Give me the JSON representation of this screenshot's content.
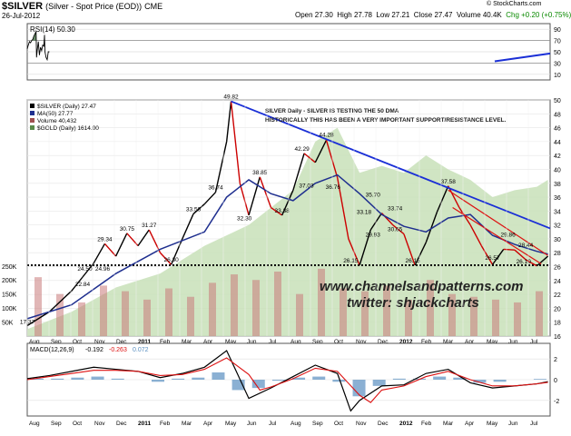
{
  "header": {
    "symbol": "$SILVER",
    "description": "(Silver - Spot Price (EOD))",
    "exchange": "CME",
    "date": "26-Jul-2012",
    "open": "Open 27.30",
    "high": "High 27.78",
    "low": "Low 27.21",
    "close": "Close 27.47",
    "volume": "Volume 40.4K",
    "change": "Chg +0.20 (+0.75%)",
    "credit": "© StockCharts.com"
  },
  "colors": {
    "price_up": "#000000",
    "price_down": "#cc0000",
    "ma50": "#1f2f8f",
    "gold_area": "#c8e0b9",
    "trendline": "#1a2fd6",
    "channel": "#dd1111",
    "rsi_fill": "#4f7a4f",
    "macd": "#000000",
    "signal": "#dd1111",
    "histogram": "#5a8fc0",
    "annotation_text": "#1a1a1a"
  },
  "chart_data": [
    {
      "type": "line",
      "title": "RSI(14) 50.30",
      "ylim": [
        0,
        100
      ],
      "ytick_labels": [
        "90",
        "70",
        "50",
        "30",
        "10"
      ],
      "ytick_values": [
        90,
        70,
        50,
        30,
        10
      ],
      "series": [
        {
          "name": "RSI(14) 50.30",
          "x": [
            0,
            0.05,
            0.1,
            0.15,
            0.2,
            0.25,
            0.3,
            0.35,
            0.4,
            0.42,
            0.45,
            0.5,
            0.55,
            0.6,
            0.65,
            0.7,
            0.75,
            0.78,
            0.8,
            0.85,
            0.9,
            0.95,
            1.0
          ],
          "values": [
            55,
            62,
            68,
            66,
            70,
            72,
            78,
            82,
            86,
            40,
            52,
            68,
            44,
            58,
            52,
            62,
            60,
            80,
            50,
            40,
            36,
            50,
            50
          ]
        }
      ],
      "trendline_values": [
        33,
        47
      ]
    },
    {
      "type": "line",
      "title": "$SILVER (Daily) 27.47",
      "ylim": [
        16,
        50
      ],
      "ytick_labels": [
        "50",
        "48",
        "46",
        "44",
        "42",
        "40",
        "38",
        "36",
        "34",
        "32",
        "30",
        "28",
        "26",
        "24",
        "22",
        "20",
        "18",
        "16"
      ],
      "ytick_values": [
        50,
        48,
        46,
        44,
        42,
        40,
        38,
        36,
        34,
        32,
        30,
        28,
        26,
        24,
        22,
        20,
        18,
        16
      ],
      "xtick_labels": [
        "Aug",
        "Sep",
        "Oct",
        "Nov",
        "Dec",
        "2011",
        "Feb",
        "Mar",
        "Apr",
        "May",
        "Jun",
        "Jul",
        "Aug",
        "Sep",
        "Oct",
        "Nov",
        "Dec",
        "2012",
        "Feb",
        "Mar",
        "Apr",
        "May",
        "Jun",
        "Jul"
      ],
      "volume_tick_labels": [
        "250K",
        "200K",
        "150K",
        "100K",
        "50K"
      ],
      "legend": [
        "$SILVER (Daily) 27.47",
        "MA(50) 27.77",
        "Volume 40,432",
        "$GOLD (Daily) 1614.00"
      ],
      "series": [
        {
          "name": "$SILVER (Daily) 27.47",
          "x": [
            0,
            1,
            2,
            2.5,
            3,
            3.5,
            4,
            4.5,
            5,
            5.5,
            6,
            6.5,
            7,
            7.5,
            8,
            8.5,
            9,
            9.2,
            9.6,
            10,
            10.5,
            11,
            11.5,
            12,
            12.5,
            13,
            13.5,
            14,
            14.5,
            15,
            15.5,
            16,
            16.5,
            17,
            17.5,
            18,
            18.5,
            19,
            19.5,
            20,
            20.5,
            21,
            21.5,
            22,
            22.5,
            23,
            23.5
          ],
          "values": [
            17.5,
            19.5,
            22.5,
            24.5,
            26.5,
            29.3,
            27.5,
            30.8,
            29.0,
            31.3,
            28.0,
            26.3,
            30.0,
            33.6,
            35.0,
            36.7,
            44.0,
            49.8,
            38.0,
            33.4,
            38.9,
            34.5,
            33.4,
            37.0,
            42.3,
            41.0,
            44.2,
            38.8,
            30.0,
            26.2,
            31.3,
            33.7,
            32.0,
            30.7,
            26.2,
            29.5,
            33.9,
            37.6,
            34.5,
            32.0,
            29.0,
            26.3,
            28.5,
            28.4,
            27.0,
            26.1,
            27.5
          ]
        },
        {
          "name": "MA(50) 27.77",
          "x": [
            0,
            2,
            4,
            6,
            8,
            9,
            10,
            11,
            12,
            13,
            14,
            15,
            16,
            17,
            18,
            19,
            20,
            21,
            22,
            23,
            23.5
          ],
          "values": [
            18.5,
            20.5,
            25.0,
            28.5,
            31.0,
            36.0,
            38.5,
            36.5,
            35.5,
            38.0,
            39.2,
            36.5,
            33.5,
            31.8,
            31.0,
            33.0,
            33.5,
            30.5,
            29.2,
            28.2,
            27.8
          ]
        },
        {
          "name": "$GOLD (Daily) 1614.00",
          "x": [
            0,
            2,
            4,
            6,
            8,
            10,
            12,
            13,
            14,
            15,
            16,
            17,
            18,
            19,
            20,
            21,
            22,
            23,
            23.5
          ],
          "values": [
            17,
            19.5,
            23.0,
            25.0,
            29.0,
            32.0,
            37.0,
            44.0,
            46.0,
            39.5,
            40.5,
            39.5,
            42.0,
            40.0,
            38.5,
            36.0,
            37.0,
            37.5,
            38.5
          ]
        }
      ],
      "volume": [
        210,
        150,
        120,
        180,
        160,
        130,
        170,
        140,
        190,
        220,
        200,
        230,
        150,
        240,
        170,
        160,
        180,
        130,
        200,
        150,
        140,
        130,
        120,
        160
      ],
      "price_labels": [
        {
          "text": "17.37",
          "x": 0,
          "y": 17.4
        },
        {
          "text": "22.84",
          "x": 2.5,
          "y": 22.8
        },
        {
          "text": "24.50",
          "x": 2.6,
          "y": 25.0
        },
        {
          "text": "24.96",
          "x": 3.4,
          "y": 25.0
        },
        {
          "text": "29.34",
          "x": 3.5,
          "y": 29.3
        },
        {
          "text": "30.75",
          "x": 4.5,
          "y": 30.8
        },
        {
          "text": "31.27",
          "x": 5.5,
          "y": 31.3
        },
        {
          "text": "26.30",
          "x": 6.5,
          "y": 26.3
        },
        {
          "text": "33.56",
          "x": 7.5,
          "y": 33.6
        },
        {
          "text": "36.74",
          "x": 8.5,
          "y": 36.7
        },
        {
          "text": "49.82",
          "x": 9.2,
          "y": 49.8
        },
        {
          "text": "32.30",
          "x": 9.8,
          "y": 32.3
        },
        {
          "text": "38.85",
          "x": 10.5,
          "y": 38.9
        },
        {
          "text": "33.38",
          "x": 11.5,
          "y": 33.4
        },
        {
          "text": "37.03",
          "x": 12.6,
          "y": 37.0
        },
        {
          "text": "42.29",
          "x": 12.4,
          "y": 42.3
        },
        {
          "text": "44.28",
          "x": 13.5,
          "y": 44.3
        },
        {
          "text": "36.76",
          "x": 13.8,
          "y": 36.8
        },
        {
          "text": "26.15",
          "x": 14.6,
          "y": 26.2
        },
        {
          "text": "35.70",
          "x": 15.6,
          "y": 35.7
        },
        {
          "text": "33.18",
          "x": 15.2,
          "y": 33.2
        },
        {
          "text": "29.93",
          "x": 15.6,
          "y": 29.9
        },
        {
          "text": "33.74",
          "x": 16.6,
          "y": 33.7
        },
        {
          "text": "30.65",
          "x": 16.6,
          "y": 30.7
        },
        {
          "text": "26.15",
          "x": 17.4,
          "y": 26.2
        },
        {
          "text": "37.58",
          "x": 19.0,
          "y": 37.6
        },
        {
          "text": "29.86",
          "x": 21.7,
          "y": 29.9
        },
        {
          "text": "28.44",
          "x": 22.5,
          "y": 28.4
        },
        {
          "text": "26.57",
          "x": 21.0,
          "y": 26.6
        },
        {
          "text": "26.10",
          "x": 22.4,
          "y": 26.1
        }
      ],
      "annotations": [
        "SILVER Daily - SILVER IS TESTING THE 50 DMA",
        "HISTORICALLY THIS HAS BEEN A VERY IMPORTANT SUPPORT/RESISTANCE LEVEL.",
        "www.channelsandpatterns.com",
        "twitter: shjackcharts"
      ],
      "support_level": 26.2,
      "resistance_line": {
        "x": [
          9.2,
          23.6
        ],
        "values": [
          49.8,
          31.5
        ]
      },
      "channel_upper": {
        "x": [
          19.0,
          23.5
        ],
        "values": [
          37.0,
          27.6
        ]
      },
      "channel_lower": {
        "x": [
          19.2,
          23.2
        ],
        "values": [
          34.5,
          26.4
        ]
      }
    },
    {
      "type": "line",
      "title": "MACD(12,26,9) -0.192, -0.263, 0.072",
      "legend": [
        "MACD(12,26,9)",
        "-0.192",
        "-0.263",
        "0.072"
      ],
      "ylim": [
        -3.5,
        3.5
      ],
      "ytick_labels": [
        "2",
        "0",
        "-2"
      ],
      "ytick_values": [
        2,
        0,
        -2
      ],
      "series": [
        {
          "name": "MACD",
          "x": [
            0,
            1,
            2,
            3,
            4,
            5,
            6,
            7,
            8,
            9,
            9.5,
            10,
            11,
            12,
            13,
            14,
            14.6,
            15,
            16,
            17,
            18,
            19,
            20,
            21,
            22,
            23,
            23.5
          ],
          "values": [
            0.1,
            0.4,
            0.8,
            1.2,
            1.0,
            0.8,
            0.2,
            0.6,
            1.2,
            2.8,
            0.5,
            -1.8,
            -0.8,
            0.3,
            1.4,
            0.6,
            -3.0,
            -2.0,
            -0.6,
            -0.5,
            0.6,
            1.0,
            -0.3,
            -0.8,
            -0.6,
            -0.4,
            -0.19
          ]
        },
        {
          "name": "Signal",
          "x": [
            0,
            1,
            2,
            3,
            4,
            5,
            6,
            7,
            8,
            9,
            10,
            10.5,
            11,
            12,
            13,
            14,
            15,
            15.5,
            16,
            17,
            18,
            19,
            20,
            21,
            22,
            23,
            23.5
          ],
          "values": [
            0.0,
            0.3,
            0.6,
            0.9,
            0.9,
            0.8,
            0.4,
            0.5,
            1.0,
            2.1,
            0.5,
            -1.0,
            -0.7,
            0.1,
            1.1,
            0.8,
            -1.5,
            -2.2,
            -1.0,
            -0.6,
            0.3,
            0.8,
            0.0,
            -0.6,
            -0.6,
            -0.4,
            -0.26
          ]
        }
      ],
      "histogram": [
        0.1,
        0.1,
        0.2,
        0.3,
        0.1,
        0.0,
        -0.2,
        0.1,
        0.2,
        0.7,
        -1.0,
        -0.8,
        -0.1,
        0.2,
        0.3,
        -0.2,
        -1.6,
        -0.6,
        0.1,
        0.1,
        0.3,
        0.2,
        -0.3,
        -0.2,
        0.0,
        0.07
      ]
    }
  ]
}
